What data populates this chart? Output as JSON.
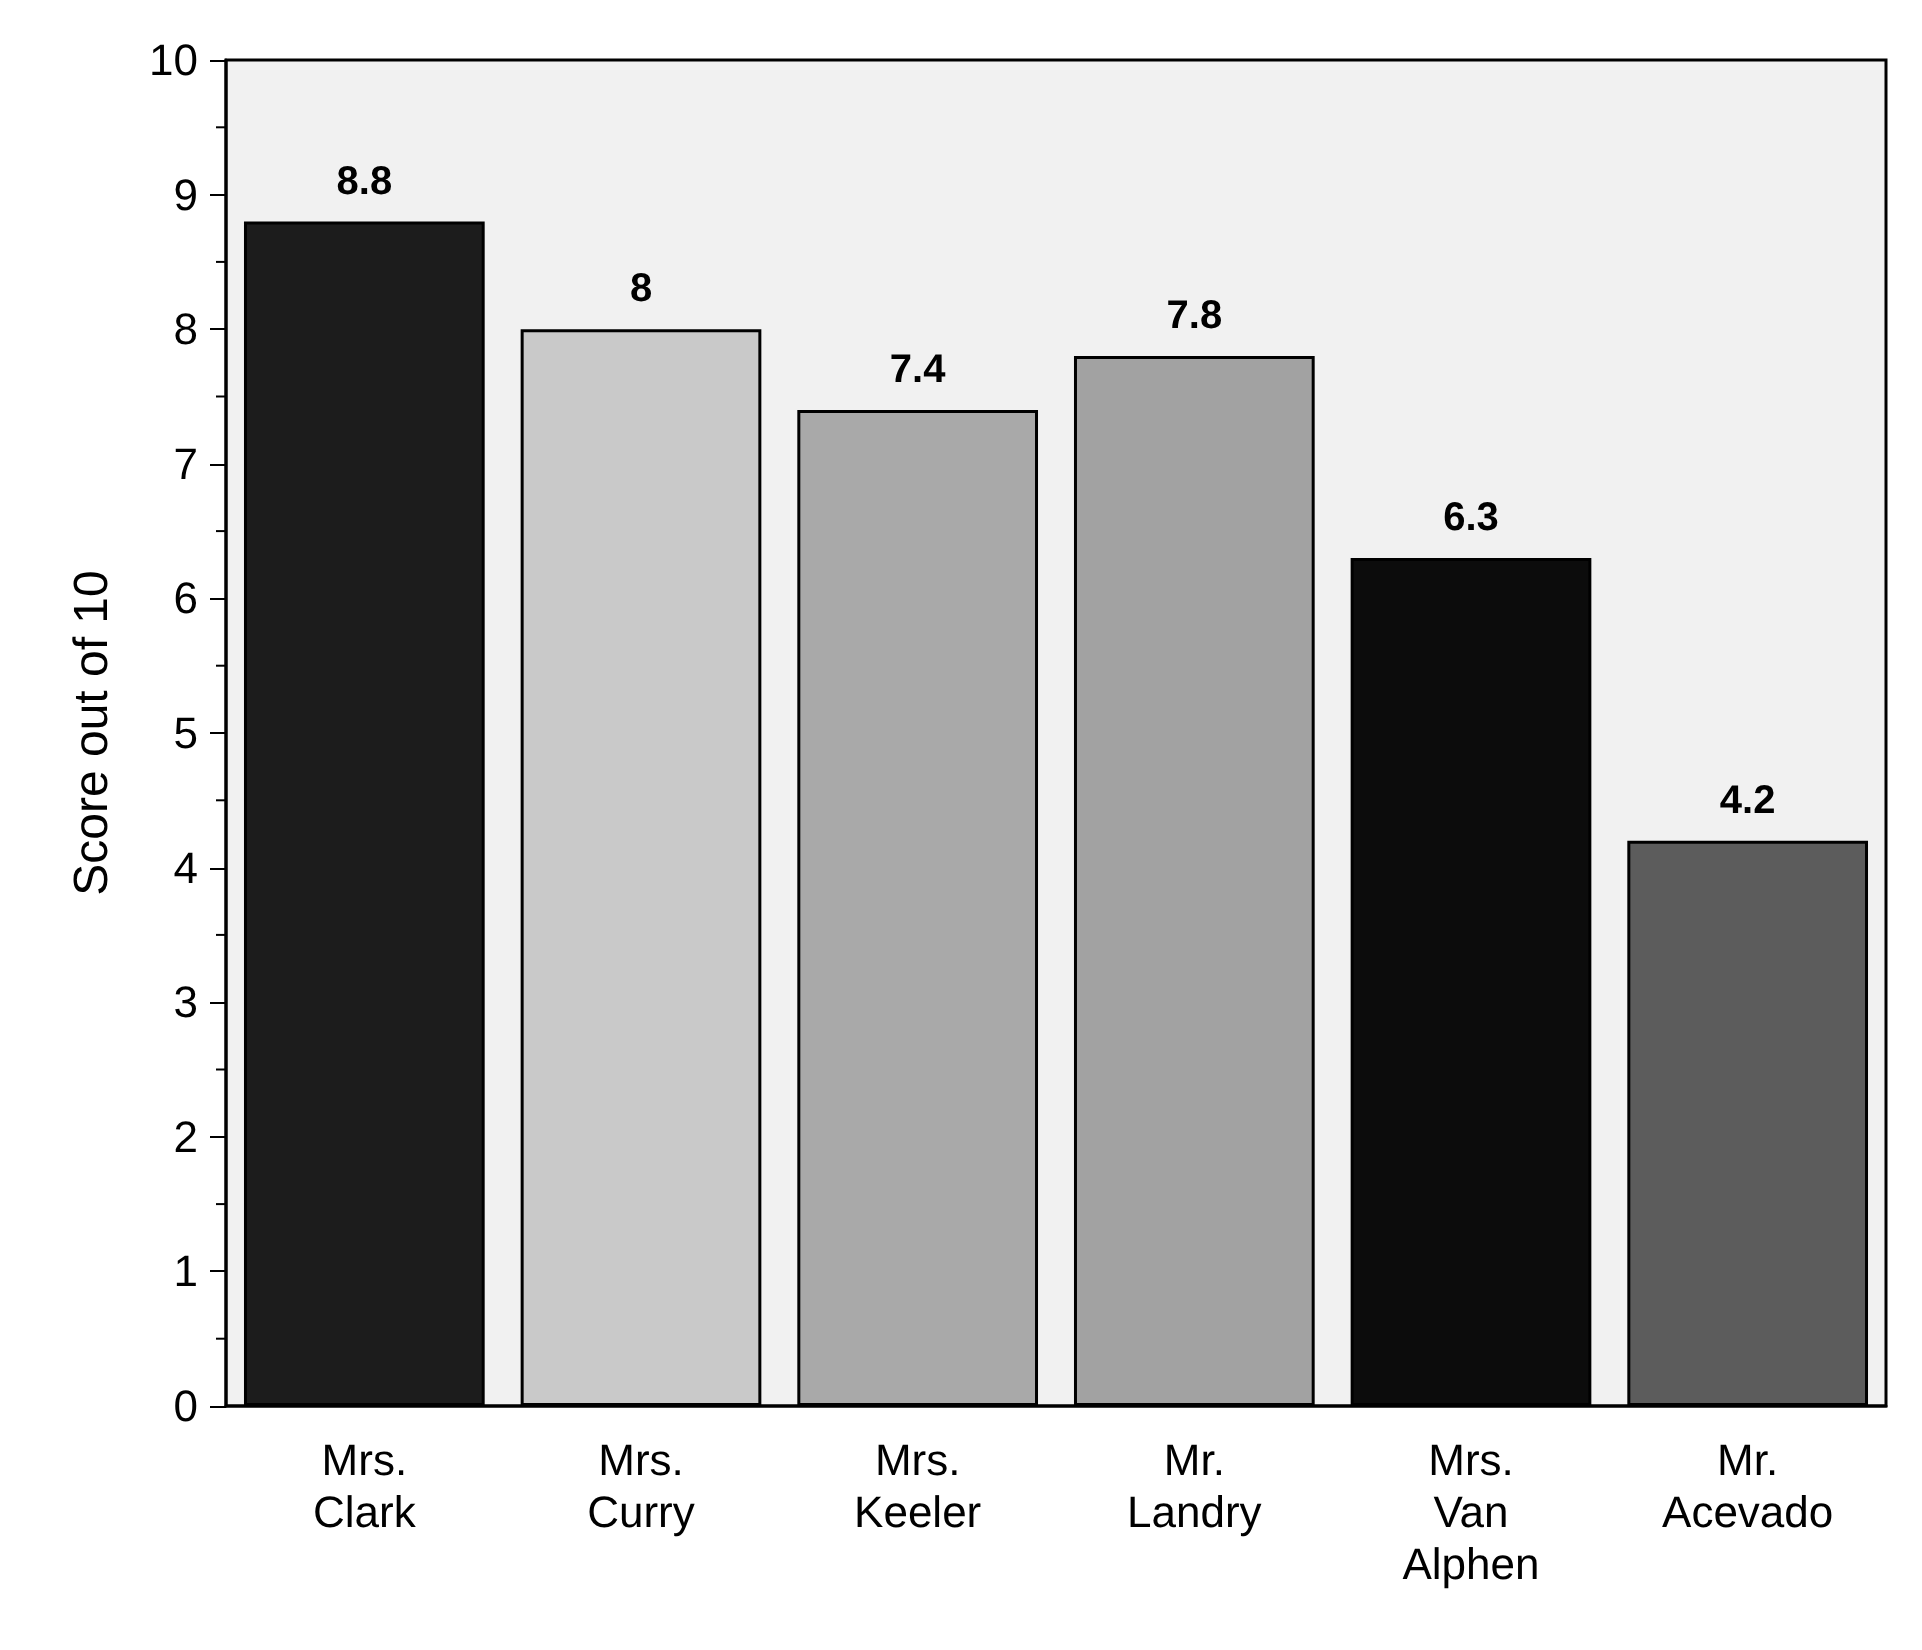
{
  "chart_data": {
    "type": "bar",
    "ylabel": "Score out of 10",
    "categories": [
      "Mrs.\nClark",
      "Mrs.\nCurry",
      "Mrs.\nKeeler",
      "Mr.\nLandry",
      "Mrs.\nVan\nAlphen",
      "Mr.\nAcevado"
    ],
    "values": [
      8.8,
      8,
      7.4,
      7.8,
      6.3,
      4.2
    ],
    "colors": [
      "#1c1c1c",
      "#c9c9c9",
      "#a9a9a9",
      "#a2a2a2",
      "#0c0c0c",
      "#5c5c5c"
    ],
    "ylim": [
      0,
      10
    ],
    "yticks": [
      0,
      1,
      2,
      3,
      4,
      5,
      6,
      7,
      8,
      9,
      10
    ],
    "grid": false,
    "data_labels": true
  }
}
